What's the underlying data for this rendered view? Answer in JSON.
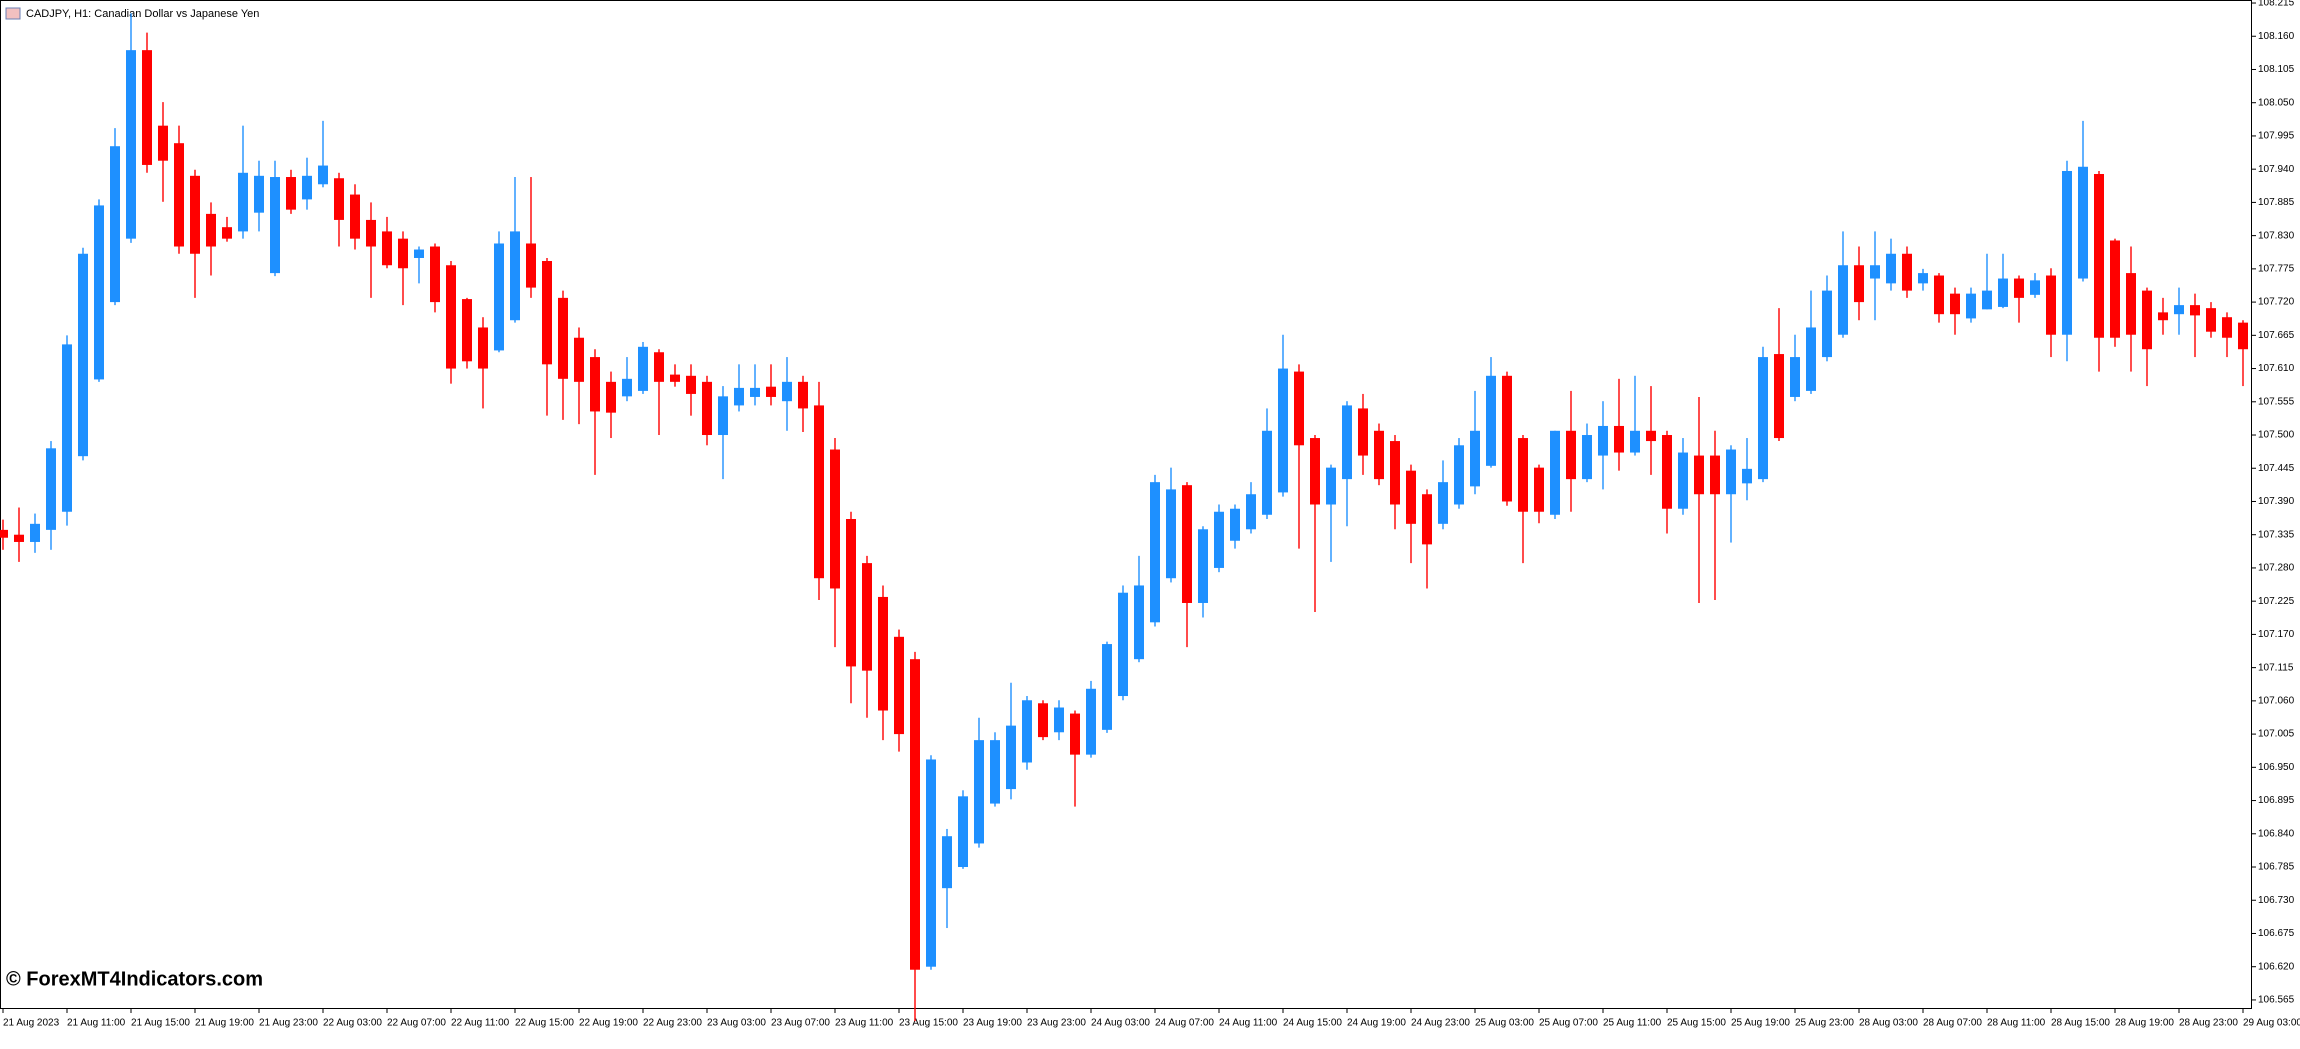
{
  "chart_data": {
    "type": "candlestick",
    "title": "CADJPY, H1:  Canadian Dollar vs Japanese Yen",
    "watermark": "© ForexMT4Indicators.com",
    "up_color": "#1e90ff",
    "down_color": "#ff0000",
    "categories": [
      "21 Aug 2023",
      null,
      null,
      null,
      "21 Aug 11:00",
      null,
      null,
      null,
      "21 Aug 15:00",
      null,
      null,
      null,
      "21 Aug 19:00",
      null,
      null,
      null,
      "21 Aug 23:00",
      null,
      null,
      null,
      "22 Aug 03:00",
      null,
      null,
      null,
      "22 Aug 07:00",
      null,
      null,
      null,
      "22 Aug 11:00",
      null,
      null,
      null,
      "22 Aug 15:00",
      null,
      null,
      null,
      "22 Aug 19:00",
      null,
      null,
      null,
      "22 Aug 23:00",
      null,
      null,
      null,
      "23 Aug 03:00",
      null,
      null,
      null,
      "23 Aug 07:00",
      null,
      null,
      null,
      "23 Aug 11:00",
      null,
      null,
      null,
      "23 Aug 15:00",
      null,
      null,
      null,
      "23 Aug 19:00",
      null,
      null,
      null,
      "23 Aug 23:00",
      null,
      null,
      null,
      "24 Aug 03:00",
      null,
      null,
      null,
      "24 Aug 07:00",
      null,
      null,
      null,
      "24 Aug 11:00",
      null,
      null,
      null,
      "24 Aug 15:00",
      null,
      null,
      null,
      "24 Aug 19:00",
      null,
      null,
      null,
      "24 Aug 23:00",
      null,
      null,
      null,
      "25 Aug 03:00",
      null,
      null,
      null,
      "25 Aug 07:00",
      null,
      null,
      null,
      "25 Aug 11:00",
      null,
      null,
      null,
      "25 Aug 15:00",
      null,
      null,
      null,
      "25 Aug 19:00",
      null,
      null,
      null,
      "25 Aug 23:00",
      null,
      null,
      null,
      "28 Aug 03:00",
      null,
      null,
      null,
      "28 Aug 07:00",
      null,
      null,
      null,
      "28 Aug 11:00",
      null,
      null,
      null,
      "28 Aug 15:00",
      null,
      null,
      null,
      "28 Aug 19:00",
      null,
      null,
      null,
      "28 Aug 23:00",
      null,
      null,
      null,
      "29 Aug 03:00"
    ],
    "open": [
      107.343,
      107.335,
      107.323,
      107.343,
      107.373,
      107.465,
      107.592,
      107.72,
      107.825,
      108.137,
      108.012,
      107.983,
      107.929,
      107.866,
      107.844,
      107.837,
      107.868,
      107.768,
      107.927,
      107.89,
      107.915,
      107.925,
      107.898,
      107.856,
      107.837,
      107.825,
      107.793,
      107.812,
      107.781,
      107.725,
      107.678,
      107.64,
      107.69,
      107.817,
      107.788,
      107.727,
      107.661,
      107.629,
      107.588,
      107.564,
      107.573,
      107.637,
      107.6,
      107.598,
      107.588,
      107.5,
      107.549,
      107.563,
      107.58,
      107.556,
      107.588,
      107.549,
      107.476,
      107.361,
      107.288,
      107.232,
      107.166,
      107.129,
      106.62,
      106.75,
      106.785,
      106.824,
      106.89,
      106.914,
      106.958,
      107.056,
      107.008,
      107.039,
      106.971,
      107.012,
      107.068,
      107.129,
      107.19,
      107.263,
      107.417,
      107.222,
      107.28,
      107.325,
      107.344,
      107.368,
      107.405,
      107.605,
      107.495,
      107.385,
      107.427,
      107.544,
      107.507,
      107.49,
      107.441,
      107.402,
      107.353,
      107.385,
      107.415,
      107.449,
      107.598,
      107.495,
      107.446,
      107.368,
      107.507,
      107.427,
      107.466,
      107.515,
      107.471,
      107.507,
      107.5,
      107.378,
      107.466,
      107.466,
      107.402,
      107.42,
      107.427,
      107.634,
      107.563,
      107.573,
      107.629,
      107.666,
      107.781,
      107.759,
      107.751,
      107.8,
      107.751,
      107.764,
      107.734,
      107.693,
      107.708,
      107.712,
      107.759,
      107.732,
      107.764,
      107.666,
      107.759,
      107.932,
      107.822,
      107.768,
      107.739,
      107.703,
      107.7,
      107.715,
      107.71,
      107.695,
      107.686
    ],
    "high": [
      107.36,
      107.38,
      107.37,
      107.49,
      107.665,
      107.81,
      107.89,
      108.008,
      108.198,
      108.166,
      108.051,
      108.012,
      107.939,
      107.885,
      107.861,
      108.012,
      107.954,
      107.954,
      107.939,
      107.959,
      108.02,
      107.934,
      107.915,
      107.885,
      107.861,
      107.837,
      107.812,
      107.817,
      107.788,
      107.727,
      107.695,
      107.837,
      107.927,
      107.927,
      107.793,
      107.739,
      107.678,
      107.642,
      107.605,
      107.629,
      107.654,
      107.642,
      107.617,
      107.617,
      107.598,
      107.581,
      107.617,
      107.617,
      107.617,
      107.629,
      107.598,
      107.588,
      107.495,
      107.373,
      107.3,
      107.251,
      107.178,
      107.141,
      106.97,
      106.848,
      106.912,
      107.032,
      107.008,
      107.09,
      107.068,
      107.061,
      107.061,
      107.044,
      107.093,
      107.158,
      107.251,
      107.3,
      107.434,
      107.446,
      107.422,
      107.349,
      107.385,
      107.385,
      107.422,
      107.544,
      107.666,
      107.617,
      107.5,
      107.451,
      107.556,
      107.568,
      107.519,
      107.5,
      107.451,
      107.41,
      107.458,
      107.495,
      107.573,
      107.629,
      107.605,
      107.5,
      107.451,
      107.507,
      107.573,
      107.519,
      107.556,
      107.593,
      107.598,
      107.581,
      107.507,
      107.495,
      107.563,
      107.507,
      107.483,
      107.495,
      107.646,
      107.71,
      107.666,
      107.739,
      107.764,
      107.837,
      107.812,
      107.837,
      107.825,
      107.812,
      107.775,
      107.768,
      107.744,
      107.744,
      107.8,
      107.8,
      107.764,
      107.768,
      107.776,
      107.954,
      108.02,
      107.937,
      107.825,
      107.812,
      107.744,
      107.727,
      107.744,
      107.734,
      107.72,
      107.703,
      107.69
    ],
    "low": [
      107.31,
      107.29,
      107.305,
      107.31,
      107.35,
      107.458,
      107.588,
      107.715,
      107.818,
      107.934,
      107.886,
      107.8,
      107.727,
      107.764,
      107.82,
      107.825,
      107.837,
      107.763,
      107.866,
      107.873,
      107.91,
      107.812,
      107.807,
      107.727,
      107.776,
      107.715,
      107.751,
      107.703,
      107.585,
      107.61,
      107.544,
      107.637,
      107.686,
      107.727,
      107.532,
      107.525,
      107.518,
      107.434,
      107.495,
      107.556,
      107.568,
      107.5,
      107.58,
      107.532,
      107.483,
      107.427,
      107.539,
      107.549,
      107.549,
      107.507,
      107.505,
      107.227,
      107.149,
      107.056,
      107.032,
      106.995,
      106.976,
      106.53,
      106.615,
      106.684,
      106.782,
      106.817,
      106.885,
      106.897,
      106.946,
      106.995,
      106.995,
      106.885,
      106.966,
      107.007,
      107.061,
      107.124,
      107.183,
      107.256,
      107.149,
      107.198,
      107.273,
      107.312,
      107.337,
      107.361,
      107.398,
      107.312,
      107.207,
      107.29,
      107.349,
      107.434,
      107.417,
      107.344,
      107.288,
      107.246,
      107.344,
      107.378,
      107.402,
      107.446,
      107.383,
      107.288,
      107.354,
      107.361,
      107.373,
      107.422,
      107.41,
      107.441,
      107.466,
      107.434,
      107.337,
      107.368,
      107.222,
      107.227,
      107.322,
      107.392,
      107.422,
      107.49,
      107.556,
      107.568,
      107.622,
      107.661,
      107.69,
      107.69,
      107.739,
      107.727,
      107.739,
      107.686,
      107.666,
      107.686,
      107.708,
      107.71,
      107.686,
      107.727,
      107.629,
      107.622,
      107.754,
      107.605,
      107.646,
      107.605,
      107.581,
      107.666,
      107.666,
      107.629,
      107.661,
      107.629,
      107.581
    ],
    "close": [
      107.33,
      107.323,
      107.353,
      107.478,
      107.65,
      107.8,
      107.88,
      107.978,
      108.137,
      107.947,
      107.954,
      107.812,
      107.8,
      107.812,
      107.825,
      107.934,
      107.929,
      107.927,
      107.873,
      107.929,
      107.946,
      107.856,
      107.825,
      107.812,
      107.781,
      107.776,
      107.807,
      107.72,
      107.61,
      107.622,
      107.61,
      107.817,
      107.837,
      107.744,
      107.617,
      107.593,
      107.588,
      107.539,
      107.537,
      107.593,
      107.646,
      107.588,
      107.588,
      107.568,
      107.5,
      107.564,
      107.578,
      107.578,
      107.563,
      107.588,
      107.544,
      107.263,
      107.246,
      107.117,
      107.11,
      107.044,
      107.005,
      106.615,
      106.963,
      106.836,
      106.902,
      106.995,
      106.995,
      107.019,
      107.061,
      107.0,
      107.049,
      106.971,
      107.08,
      107.154,
      107.239,
      107.251,
      107.422,
      107.41,
      107.222,
      107.344,
      107.373,
      107.378,
      107.402,
      107.507,
      107.61,
      107.483,
      107.385,
      107.446,
      107.549,
      107.466,
      107.427,
      107.385,
      107.353,
      107.319,
      107.422,
      107.483,
      107.507,
      107.598,
      107.39,
      107.373,
      107.373,
      107.507,
      107.427,
      107.5,
      107.515,
      107.471,
      107.507,
      107.49,
      107.378,
      107.471,
      107.402,
      107.402,
      107.476,
      107.444,
      107.629,
      107.495,
      107.629,
      107.678,
      107.739,
      107.781,
      107.72,
      107.781,
      107.8,
      107.739,
      107.768,
      107.7,
      107.7,
      107.734,
      107.739,
      107.759,
      107.727,
      107.756,
      107.666,
      107.937,
      107.944,
      107.661,
      107.661,
      107.666,
      107.642,
      107.69,
      107.715,
      107.698,
      107.671,
      107.661,
      107.642
    ],
    "ylim": [
      106.55,
      108.22
    ],
    "yticks": [
      108.215,
      {
        "value": 108.16,
        "label": "108.160"
      },
      108.105,
      {
        "value": 108.05,
        "label": "108.050"
      },
      107.995,
      {
        "value": 107.94,
        "label": "107.940"
      },
      107.885,
      {
        "value": 107.83,
        "label": "107.830"
      },
      107.775,
      {
        "value": 107.72,
        "label": "107.720"
      },
      107.665,
      {
        "value": 107.61,
        "label": "107.610"
      },
      107.555,
      {
        "value": 107.5,
        "label": "107.500"
      },
      107.445,
      {
        "value": 107.39,
        "label": "107.390"
      },
      107.335,
      {
        "value": 107.28,
        "label": "107.280"
      },
      107.225,
      {
        "value": 107.17,
        "label": "107.170"
      },
      107.115,
      {
        "value": 107.06,
        "label": "107.060"
      },
      107.005,
      {
        "value": 106.95,
        "label": "106.950"
      },
      106.895,
      {
        "value": 106.84,
        "label": "106.840"
      },
      106.785,
      {
        "value": 106.73,
        "label": "106.730"
      },
      106.675,
      {
        "value": 106.62,
        "label": "106.620"
      },
      106.565
    ],
    "grid": false
  }
}
